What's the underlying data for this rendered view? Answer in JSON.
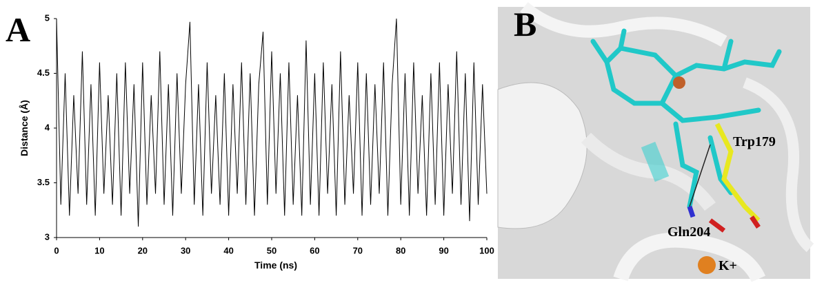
{
  "panel_a": {
    "label": "A"
  },
  "chart_data": {
    "type": "line",
    "xlabel": "Time (ns)",
    "ylabel": "Distance (Å)",
    "color": "#000000",
    "x": [
      0,
      1,
      2,
      3,
      4,
      5,
      6,
      7,
      8,
      9,
      10,
      11,
      12,
      13,
      14,
      15,
      16,
      17,
      18,
      19,
      20,
      21,
      22,
      23,
      24,
      25,
      26,
      27,
      28,
      29,
      30,
      31,
      32,
      33,
      34,
      35,
      36,
      37,
      38,
      39,
      40,
      41,
      42,
      43,
      44,
      45,
      46,
      47,
      48,
      49,
      50,
      51,
      52,
      53,
      54,
      55,
      56,
      57,
      58,
      59,
      60,
      61,
      62,
      63,
      64,
      65,
      66,
      67,
      68,
      69,
      70,
      71,
      72,
      73,
      74,
      75,
      76,
      77,
      78,
      79,
      80,
      81,
      82,
      83,
      84,
      85,
      86,
      87,
      88,
      89,
      90,
      91,
      92,
      93,
      94,
      95,
      96,
      97,
      98,
      99,
      100
    ],
    "values": [
      5.0,
      3.3,
      4.5,
      3.2,
      4.3,
      3.4,
      4.7,
      3.3,
      4.4,
      3.2,
      4.6,
      3.4,
      4.3,
      3.3,
      4.5,
      3.2,
      4.6,
      3.4,
      4.4,
      3.1,
      4.6,
      3.3,
      4.3,
      3.4,
      4.7,
      3.3,
      4.4,
      3.2,
      4.5,
      3.4,
      4.4,
      4.97,
      3.3,
      4.4,
      3.2,
      4.6,
      3.4,
      4.3,
      3.3,
      4.5,
      3.2,
      4.4,
      3.4,
      4.6,
      3.3,
      4.5,
      3.2,
      4.4,
      4.88,
      3.3,
      4.7,
      3.4,
      4.5,
      3.2,
      4.6,
      3.3,
      4.3,
      3.2,
      4.8,
      3.3,
      4.5,
      3.2,
      4.6,
      3.4,
      4.4,
      3.2,
      4.7,
      3.3,
      4.3,
      3.4,
      4.6,
      3.2,
      4.5,
      3.3,
      4.4,
      3.4,
      4.6,
      3.2,
      4.4,
      5.0,
      3.3,
      4.5,
      3.2,
      4.6,
      3.4,
      4.3,
      3.2,
      4.5,
      3.3,
      4.6,
      3.2,
      4.4,
      3.4,
      4.7,
      3.3,
      4.5,
      3.15,
      4.6,
      3.3,
      4.4,
      3.4
    ],
    "xlim": [
      0,
      100
    ],
    "xticks": [
      0,
      10,
      20,
      30,
      40,
      50,
      60,
      70,
      80,
      90,
      100
    ],
    "ylim": [
      3,
      5
    ],
    "yticks": [
      3,
      3.5,
      4,
      4.5,
      5
    ],
    "grid": false
  },
  "panel_b": {
    "label": "B",
    "annotations": [
      "Trp179",
      "Gln204",
      "K+"
    ]
  }
}
